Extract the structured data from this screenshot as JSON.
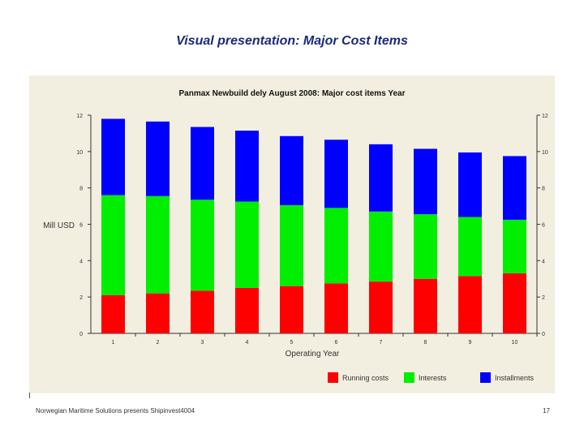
{
  "slide": {
    "title": "Visual presentation: Major Cost Items",
    "footer": "Norwegian Maritime Solutions presents Shipinvest4004",
    "page_number": "17"
  },
  "chart_data": {
    "type": "bar",
    "stacked": true,
    "title": "Panmax Newbuild dely August 2008:  Major cost items Year",
    "xlabel": "Operating Year",
    "ylabel": "Mill USD",
    "categories": [
      "1",
      "2",
      "3",
      "4",
      "5",
      "6",
      "7",
      "8",
      "9",
      "10"
    ],
    "ylim": [
      0,
      12
    ],
    "yticks_left": [
      "0",
      "2",
      "4",
      "6",
      "8",
      "10",
      "12"
    ],
    "yticks_right": [
      "0",
      "2",
      "4",
      "6",
      "8",
      "10",
      "12"
    ],
    "grid": false,
    "legend_position": "bottom-right",
    "series": [
      {
        "name": "Running costs",
        "color": "#ff0000",
        "values": [
          2.1,
          2.2,
          2.35,
          2.5,
          2.6,
          2.75,
          2.85,
          3.0,
          3.15,
          3.3
        ]
      },
      {
        "name": "Interests",
        "color": "#00ee00",
        "values": [
          5.5,
          5.35,
          5.0,
          4.75,
          4.45,
          4.15,
          3.85,
          3.55,
          3.25,
          2.95
        ]
      },
      {
        "name": "Installments",
        "color": "#0000ff",
        "values": [
          4.2,
          4.1,
          4.0,
          3.9,
          3.8,
          3.75,
          3.7,
          3.6,
          3.55,
          3.5
        ]
      }
    ]
  }
}
